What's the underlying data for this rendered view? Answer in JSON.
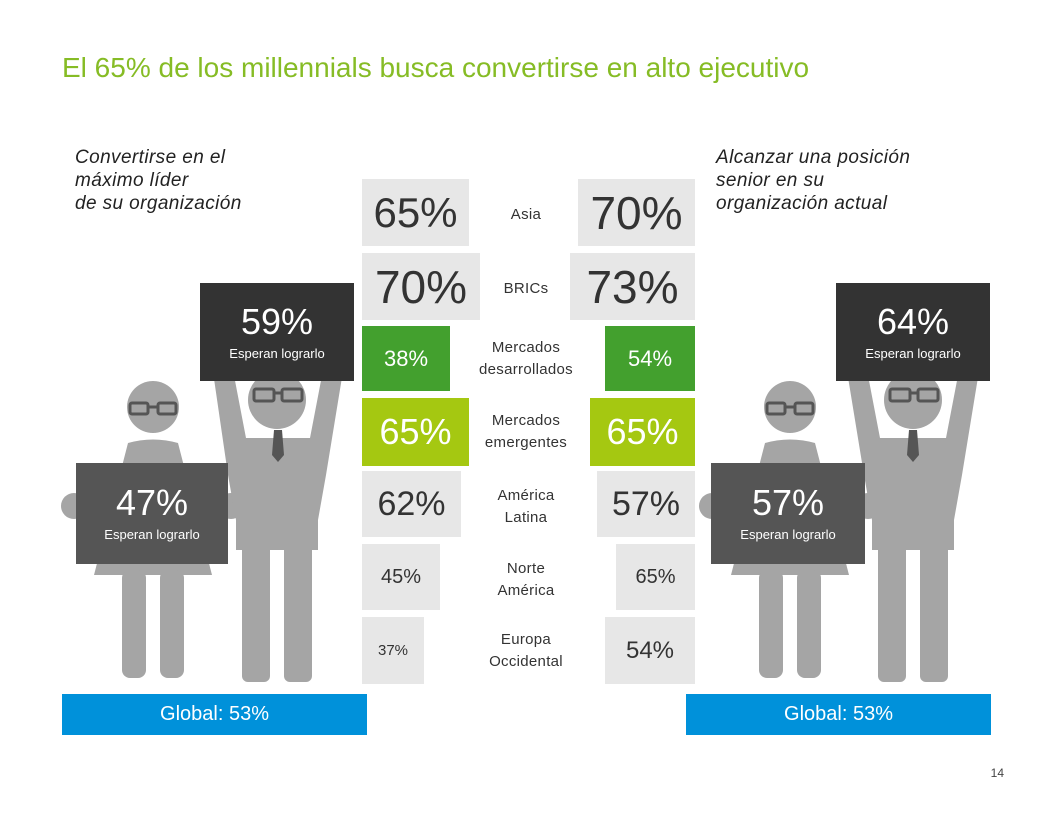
{
  "title": "El 65% de los millennials busca convertirse en alto ejecutivo",
  "left": {
    "heading": "Convertirse en el\nmáximo líder\nde su organización",
    "man_sign": {
      "value": "59%",
      "label": "Esperan lograrlo"
    },
    "woman_sign": {
      "value": "47%",
      "label": "Esperan lograrlo"
    },
    "global": "Global: 53%"
  },
  "right": {
    "heading": "Alcanzar una posición\nsenior en su\norganización actual",
    "man_sign": {
      "value": "64%",
      "label": "Esperan lograrlo"
    },
    "woman_sign": {
      "value": "57%",
      "label": "Esperan lograrlo"
    },
    "global": "Global: 53%"
  },
  "regions": [
    {
      "name": "Asia",
      "left": "65%",
      "right": "70%"
    },
    {
      "name": "BRICs",
      "left": "70%",
      "right": "73%"
    },
    {
      "name": "Mercados\ndesarrollados",
      "left": "38%",
      "right": "54%"
    },
    {
      "name": "Mercados\nemergentes",
      "left": "65%",
      "right": "65%"
    },
    {
      "name": "América\nLatina",
      "left": "62%",
      "right": "57%"
    },
    {
      "name": "Norte\nAmérica",
      "left": "45%",
      "right": "65%"
    },
    {
      "name": "Europa\nOccidental",
      "left": "37%",
      "right": "54%"
    }
  ],
  "colors": {
    "title_green": "#86bc25",
    "dark_green": "#43a02e",
    "lime": "#a5c811",
    "light_gray_box": "#e7e7e7",
    "figure_gray": "#a5a5a5",
    "sign_dark": "#333333",
    "sign_mid": "#555555",
    "global_blue": "#0091da"
  },
  "page_number": "14"
}
